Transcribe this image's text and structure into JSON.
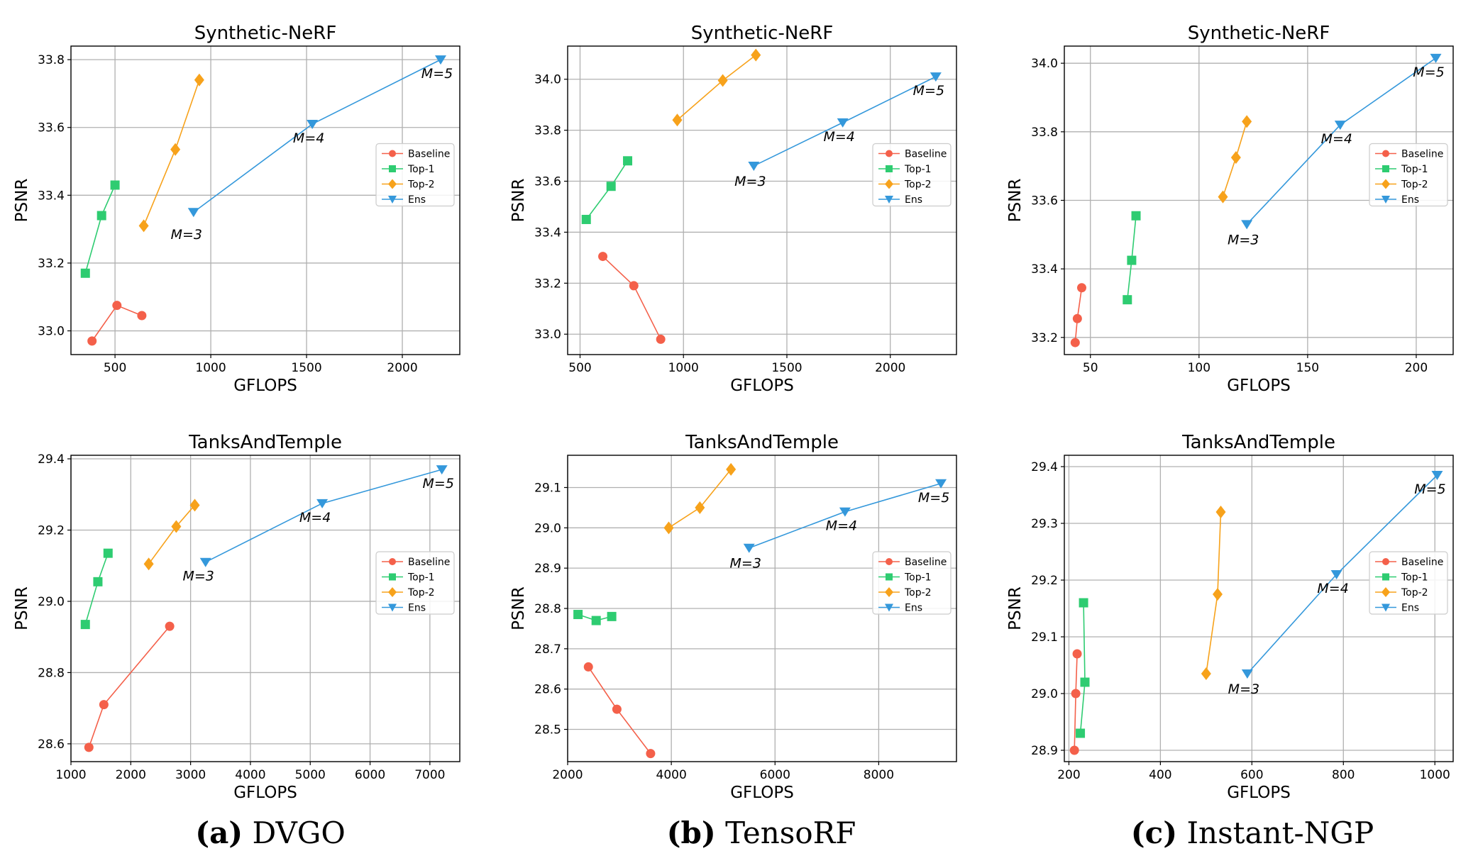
{
  "captions": [
    {
      "label": "(a)",
      "text": "DVGO"
    },
    {
      "label": "(b)",
      "text": "TensoRF"
    },
    {
      "label": "(c)",
      "text": "Instant-NGP"
    }
  ],
  "legend": [
    "Baseline",
    "Top-1",
    "Top-2",
    "Ens"
  ],
  "colors": {
    "Baseline": "#f4604a",
    "Top-1": "#2ecc71",
    "Top-2": "#f7a21b",
    "Ens": "#3498db"
  },
  "chart_data": [
    {
      "type": "line",
      "title": "Synthetic-NeRF",
      "xlabel": "GFLOPS",
      "ylabel": "PSNR",
      "xlim": [
        270,
        2300
      ],
      "ylim": [
        32.93,
        33.84
      ],
      "xticks": [
        500,
        1000,
        1500,
        2000
      ],
      "yticks": [
        33.0,
        33.2,
        33.4,
        33.6,
        33.8
      ],
      "ytick_labels": [
        "33.0",
        "33.2",
        "33.4",
        "33.6",
        "33.8"
      ],
      "grid": true,
      "legend": "center-right",
      "series": [
        {
          "name": "Baseline",
          "x": [
            380,
            510,
            640
          ],
          "y": [
            32.97,
            33.075,
            33.045
          ]
        },
        {
          "name": "Top-1",
          "x": [
            345,
            430,
            500
          ],
          "y": [
            33.17,
            33.34,
            33.43
          ]
        },
        {
          "name": "Top-2",
          "x": [
            650,
            815,
            940
          ],
          "y": [
            33.31,
            33.535,
            33.74
          ]
        },
        {
          "name": "Ens",
          "x": [
            910,
            1530,
            2200
          ],
          "y": [
            33.35,
            33.61,
            33.8
          ],
          "point_labels": [
            "M=3",
            "M=4",
            "M=5"
          ]
        }
      ]
    },
    {
      "type": "line",
      "title": "Synthetic-NeRF",
      "xlabel": "GFLOPS",
      "ylabel": "PSNR",
      "xlim": [
        440,
        2320
      ],
      "ylim": [
        32.92,
        34.13
      ],
      "xticks": [
        500,
        1000,
        1500,
        2000
      ],
      "yticks": [
        33.0,
        33.2,
        33.4,
        33.6,
        33.8,
        34.0
      ],
      "ytick_labels": [
        "33.0",
        "33.2",
        "33.4",
        "33.6",
        "33.8",
        "34.0"
      ],
      "grid": true,
      "legend": "center-right",
      "series": [
        {
          "name": "Baseline",
          "x": [
            610,
            760,
            890
          ],
          "y": [
            33.305,
            33.19,
            32.98
          ]
        },
        {
          "name": "Top-1",
          "x": [
            530,
            650,
            730
          ],
          "y": [
            33.45,
            33.58,
            33.68
          ]
        },
        {
          "name": "Top-2",
          "x": [
            970,
            1190,
            1350
          ],
          "y": [
            33.84,
            33.995,
            34.095
          ]
        },
        {
          "name": "Ens",
          "x": [
            1340,
            1770,
            2220
          ],
          "y": [
            33.66,
            33.83,
            34.01
          ],
          "point_labels": [
            "M=3",
            "M=4",
            "M=5"
          ]
        }
      ]
    },
    {
      "type": "line",
      "title": "Synthetic-NeRF",
      "xlabel": "GFLOPS",
      "ylabel": "PSNR",
      "xlim": [
        38,
        217
      ],
      "ylim": [
        33.15,
        34.05
      ],
      "xticks": [
        50,
        100,
        150,
        200
      ],
      "yticks": [
        33.2,
        33.4,
        33.6,
        33.8,
        34.0
      ],
      "ytick_labels": [
        "33.2",
        "33.4",
        "33.6",
        "33.8",
        "34.0"
      ],
      "grid": true,
      "legend": "center-right",
      "series": [
        {
          "name": "Baseline",
          "x": [
            43,
            44,
            46
          ],
          "y": [
            33.185,
            33.255,
            33.345
          ]
        },
        {
          "name": "Top-1",
          "x": [
            67,
            69,
            71
          ],
          "y": [
            33.31,
            33.425,
            33.555
          ]
        },
        {
          "name": "Top-2",
          "x": [
            111,
            117,
            122
          ],
          "y": [
            33.61,
            33.725,
            33.83
          ]
        },
        {
          "name": "Ens",
          "x": [
            122,
            165,
            209
          ],
          "y": [
            33.53,
            33.82,
            34.015
          ],
          "point_labels": [
            "M=3",
            "M=4",
            "M=5"
          ]
        }
      ]
    },
    {
      "type": "line",
      "title": "TanksAndTemple",
      "xlabel": "GFLOPS",
      "ylabel": "PSNR",
      "xlim": [
        1000,
        7500
      ],
      "ylim": [
        28.55,
        29.41
      ],
      "xticks": [
        1000,
        2000,
        3000,
        4000,
        5000,
        6000,
        7000
      ],
      "yticks": [
        28.6,
        28.8,
        29.0,
        29.2,
        29.4
      ],
      "ytick_labels": [
        "28.6",
        "28.8",
        "29.0",
        "29.2",
        "29.4"
      ],
      "grid": true,
      "legend": "center-right",
      "series": [
        {
          "name": "Baseline",
          "x": [
            1300,
            1550,
            2650
          ],
          "y": [
            28.59,
            28.71,
            28.93
          ]
        },
        {
          "name": "Top-1",
          "x": [
            1240,
            1450,
            1620
          ],
          "y": [
            28.935,
            29.055,
            29.135
          ]
        },
        {
          "name": "Top-2",
          "x": [
            2300,
            2760,
            3070
          ],
          "y": [
            29.105,
            29.21,
            29.27
          ]
        },
        {
          "name": "Ens",
          "x": [
            3250,
            5200,
            7200
          ],
          "y": [
            29.11,
            29.275,
            29.37
          ],
          "point_labels": [
            "M=3",
            "M=4",
            "M=5"
          ]
        }
      ]
    },
    {
      "type": "line",
      "title": "TanksAndTemple",
      "xlabel": "GFLOPS",
      "ylabel": "PSNR",
      "xlim": [
        2000,
        9500
      ],
      "ylim": [
        28.42,
        29.18
      ],
      "xticks": [
        2000,
        4000,
        6000,
        8000
      ],
      "yticks": [
        28.5,
        28.6,
        28.7,
        28.8,
        28.9,
        29.0,
        29.1
      ],
      "ytick_labels": [
        "28.5",
        "28.6",
        "28.7",
        "28.8",
        "28.9",
        "29.0",
        "29.1"
      ],
      "grid": true,
      "legend": "center-right",
      "series": [
        {
          "name": "Baseline",
          "x": [
            2400,
            2950,
            3600
          ],
          "y": [
            28.655,
            28.55,
            28.44
          ]
        },
        {
          "name": "Top-1",
          "x": [
            2200,
            2550,
            2850
          ],
          "y": [
            28.785,
            28.77,
            28.78
          ]
        },
        {
          "name": "Top-2",
          "x": [
            3950,
            4550,
            5150
          ],
          "y": [
            29.0,
            29.05,
            29.145
          ]
        },
        {
          "name": "Ens",
          "x": [
            5500,
            7350,
            9200
          ],
          "y": [
            28.95,
            29.04,
            29.11
          ],
          "point_labels": [
            "M=3",
            "M=4",
            "M=5"
          ]
        }
      ]
    },
    {
      "type": "line",
      "title": "TanksAndTemple",
      "xlabel": "GFLOPS",
      "ylabel": "PSNR",
      "xlim": [
        190,
        1040
      ],
      "ylim": [
        28.88,
        29.42
      ],
      "xticks": [
        200,
        400,
        600,
        800,
        1000
      ],
      "yticks": [
        28.9,
        29.0,
        29.1,
        29.2,
        29.3,
        29.4
      ],
      "ytick_labels": [
        "28.9",
        "29.0",
        "29.1",
        "29.2",
        "29.3",
        "29.4"
      ],
      "grid": true,
      "legend": "center-right",
      "series": [
        {
          "name": "Baseline",
          "x": [
            212,
            215,
            218
          ],
          "y": [
            28.9,
            29.0,
            29.07
          ]
        },
        {
          "name": "Top-1",
          "x": [
            225,
            235,
            232
          ],
          "y": [
            28.93,
            29.02,
            29.16
          ]
        },
        {
          "name": "Top-2",
          "x": [
            500,
            525,
            532
          ],
          "y": [
            29.035,
            29.175,
            29.32
          ]
        },
        {
          "name": "Ens",
          "x": [
            590,
            785,
            1005
          ],
          "y": [
            29.035,
            29.21,
            29.385
          ],
          "point_labels": [
            "M=3",
            "M=4",
            "M=5"
          ]
        }
      ]
    }
  ]
}
